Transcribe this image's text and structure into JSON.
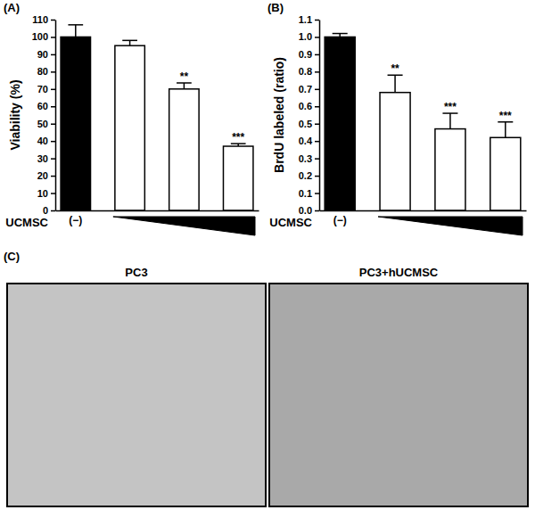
{
  "chart_data": [
    {
      "type": "bar",
      "title": "(A)",
      "y_label": "Viability (%)",
      "x_label": "UCMSC",
      "categories": [
        "(−)",
        null,
        null,
        null
      ],
      "values": [
        100,
        95,
        70,
        37
      ],
      "errors": [
        7,
        3,
        3.5,
        1.5
      ],
      "significance": [
        null,
        null,
        "**",
        "***"
      ],
      "colors": [
        "#000000",
        "#ffffff",
        "#ffffff",
        "#ffffff"
      ],
      "ylim": [
        0,
        110
      ],
      "yticks": [
        0,
        10,
        20,
        30,
        40,
        50,
        60,
        70,
        80,
        90,
        100,
        110
      ],
      "grid": false
    },
    {
      "type": "bar",
      "title": "(B)",
      "y_label": "BrdU labeled (ratio)",
      "x_label": "UCMSC",
      "categories": [
        "(−)",
        null,
        null,
        null
      ],
      "values": [
        1.0,
        0.68,
        0.47,
        0.42
      ],
      "errors": [
        0.02,
        0.1,
        0.09,
        0.09
      ],
      "significance": [
        null,
        "**",
        "***",
        "***"
      ],
      "colors": [
        "#000000",
        "#ffffff",
        "#ffffff",
        "#ffffff"
      ],
      "ylim": [
        0,
        1.1
      ],
      "yticks": [
        {
          "value": 0,
          "label": "0.0"
        },
        0.1,
        0.2,
        0.3,
        0.4,
        0.5,
        0.6,
        0.7,
        0.8,
        0.9,
        {
          "value": 1,
          "label": "1.0"
        },
        1.1
      ],
      "grid": false
    }
  ],
  "images": {
    "label": "(C)",
    "panels": [
      {
        "title": "PC3"
      },
      {
        "title": "PC3+hUCMSC"
      }
    ]
  }
}
